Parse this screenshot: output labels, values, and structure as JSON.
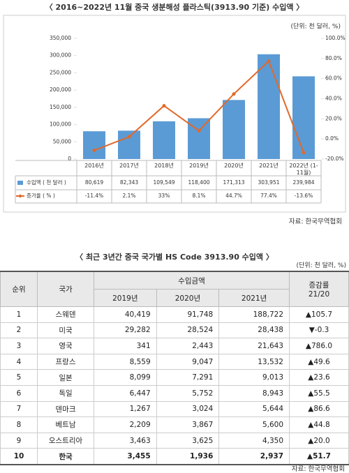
{
  "chart_data": {
    "type": "bar",
    "title": "〈 2016~2022년 11월 중국 생분해성 플라스틱(3913.90 기준) 수입액 〉",
    "subtitle": "(단위: 천 달러, %)",
    "categories": [
      "2016년",
      "2017년",
      "2018년",
      "2019년",
      "2020년",
      "2021년",
      "2022년 (1-11월)"
    ],
    "series": [
      {
        "name": "수입액 ( 천 달러 )",
        "type": "bar",
        "color": "#5b9bd5",
        "values": [
          80619,
          82343,
          109549,
          118400,
          171313,
          303951,
          239984
        ],
        "value_labels": [
          "80,619",
          "82,343",
          "109,549",
          "118,400",
          "171,313",
          "303,951",
          "239,984"
        ]
      },
      {
        "name": "증가율 ( % )",
        "type": "line",
        "axis": "y2",
        "color": "#e0692a",
        "values": [
          -11.4,
          2.1,
          33,
          8.1,
          44.7,
          77.4,
          -13.6
        ],
        "value_labels": [
          "-11.4%",
          "2.1%",
          "33%",
          "8.1%",
          "44.7%",
          "77.4%",
          "-13.6%"
        ]
      }
    ],
    "ylim": [
      0,
      350000
    ],
    "yticks": [
      0,
      {
        "value": 50000,
        "label": "50,000"
      },
      {
        "value": 100000,
        "label": "100,000"
      },
      {
        "value": 150000,
        "label": "150,000"
      },
      {
        "value": 200000,
        "label": "200,000"
      },
      {
        "value": 250000,
        "label": "250,000"
      },
      {
        "value": 300000,
        "label": "300,000"
      },
      {
        "value": 350000,
        "label": "350,000"
      }
    ],
    "y2lim": [
      -20,
      100
    ],
    "y2ticks": [
      {
        "value": -20,
        "label": "-20.0%"
      },
      {
        "value": 0,
        "label": "0.0%"
      },
      {
        "value": 20,
        "label": "20.0%"
      },
      {
        "value": 40,
        "label": "40.0%"
      },
      {
        "value": 60,
        "label": "60.0%"
      },
      {
        "value": 80,
        "label": "80.0%"
      },
      {
        "value": 100,
        "label": "100.0%"
      }
    ],
    "grid": false,
    "source": "자료: 한국무역협회"
  },
  "table": {
    "title": "〈 최근 3년간 중국 국가별 HS Code 3913.90 수입액 〉",
    "unit": "(단위: 천 달러, %)",
    "headers": {
      "rank": "순위",
      "country": "국가",
      "amount": "수입금액",
      "years": [
        "2019년",
        "2020년",
        "2021년"
      ],
      "growth": [
        "증감률",
        "21/20"
      ]
    },
    "rows": [
      [
        "1",
        "스웨덴",
        "40,419",
        "91,748",
        "188,722",
        "▲105.7"
      ],
      [
        "2",
        "미국",
        "29,282",
        "28,524",
        "28,438",
        "▼-0.3"
      ],
      [
        "3",
        "영국",
        "341",
        "2,443",
        "21,643",
        "▲786.0"
      ],
      [
        "4",
        "프랑스",
        "8,559",
        "9,047",
        "13,532",
        "▲49.6"
      ],
      [
        "5",
        "일본",
        "8,099",
        "7,291",
        "9,013",
        "▲23.6"
      ],
      [
        "6",
        "독일",
        "6,447",
        "5,752",
        "8,943",
        "▲55.5"
      ],
      [
        "7",
        "덴마크",
        "1,267",
        "3,024",
        "5,644",
        "▲86.6"
      ],
      [
        "8",
        "베트남",
        "2,209",
        "3,867",
        "5,600",
        "▲44.8"
      ],
      [
        "9",
        "오스트리아",
        "3,463",
        "3,625",
        "4,350",
        "▲20.0"
      ],
      [
        "10",
        "한국",
        "3,455",
        "1,936",
        "2,937",
        "▲51.7"
      ]
    ],
    "source": "자료: 한국무역협회"
  }
}
